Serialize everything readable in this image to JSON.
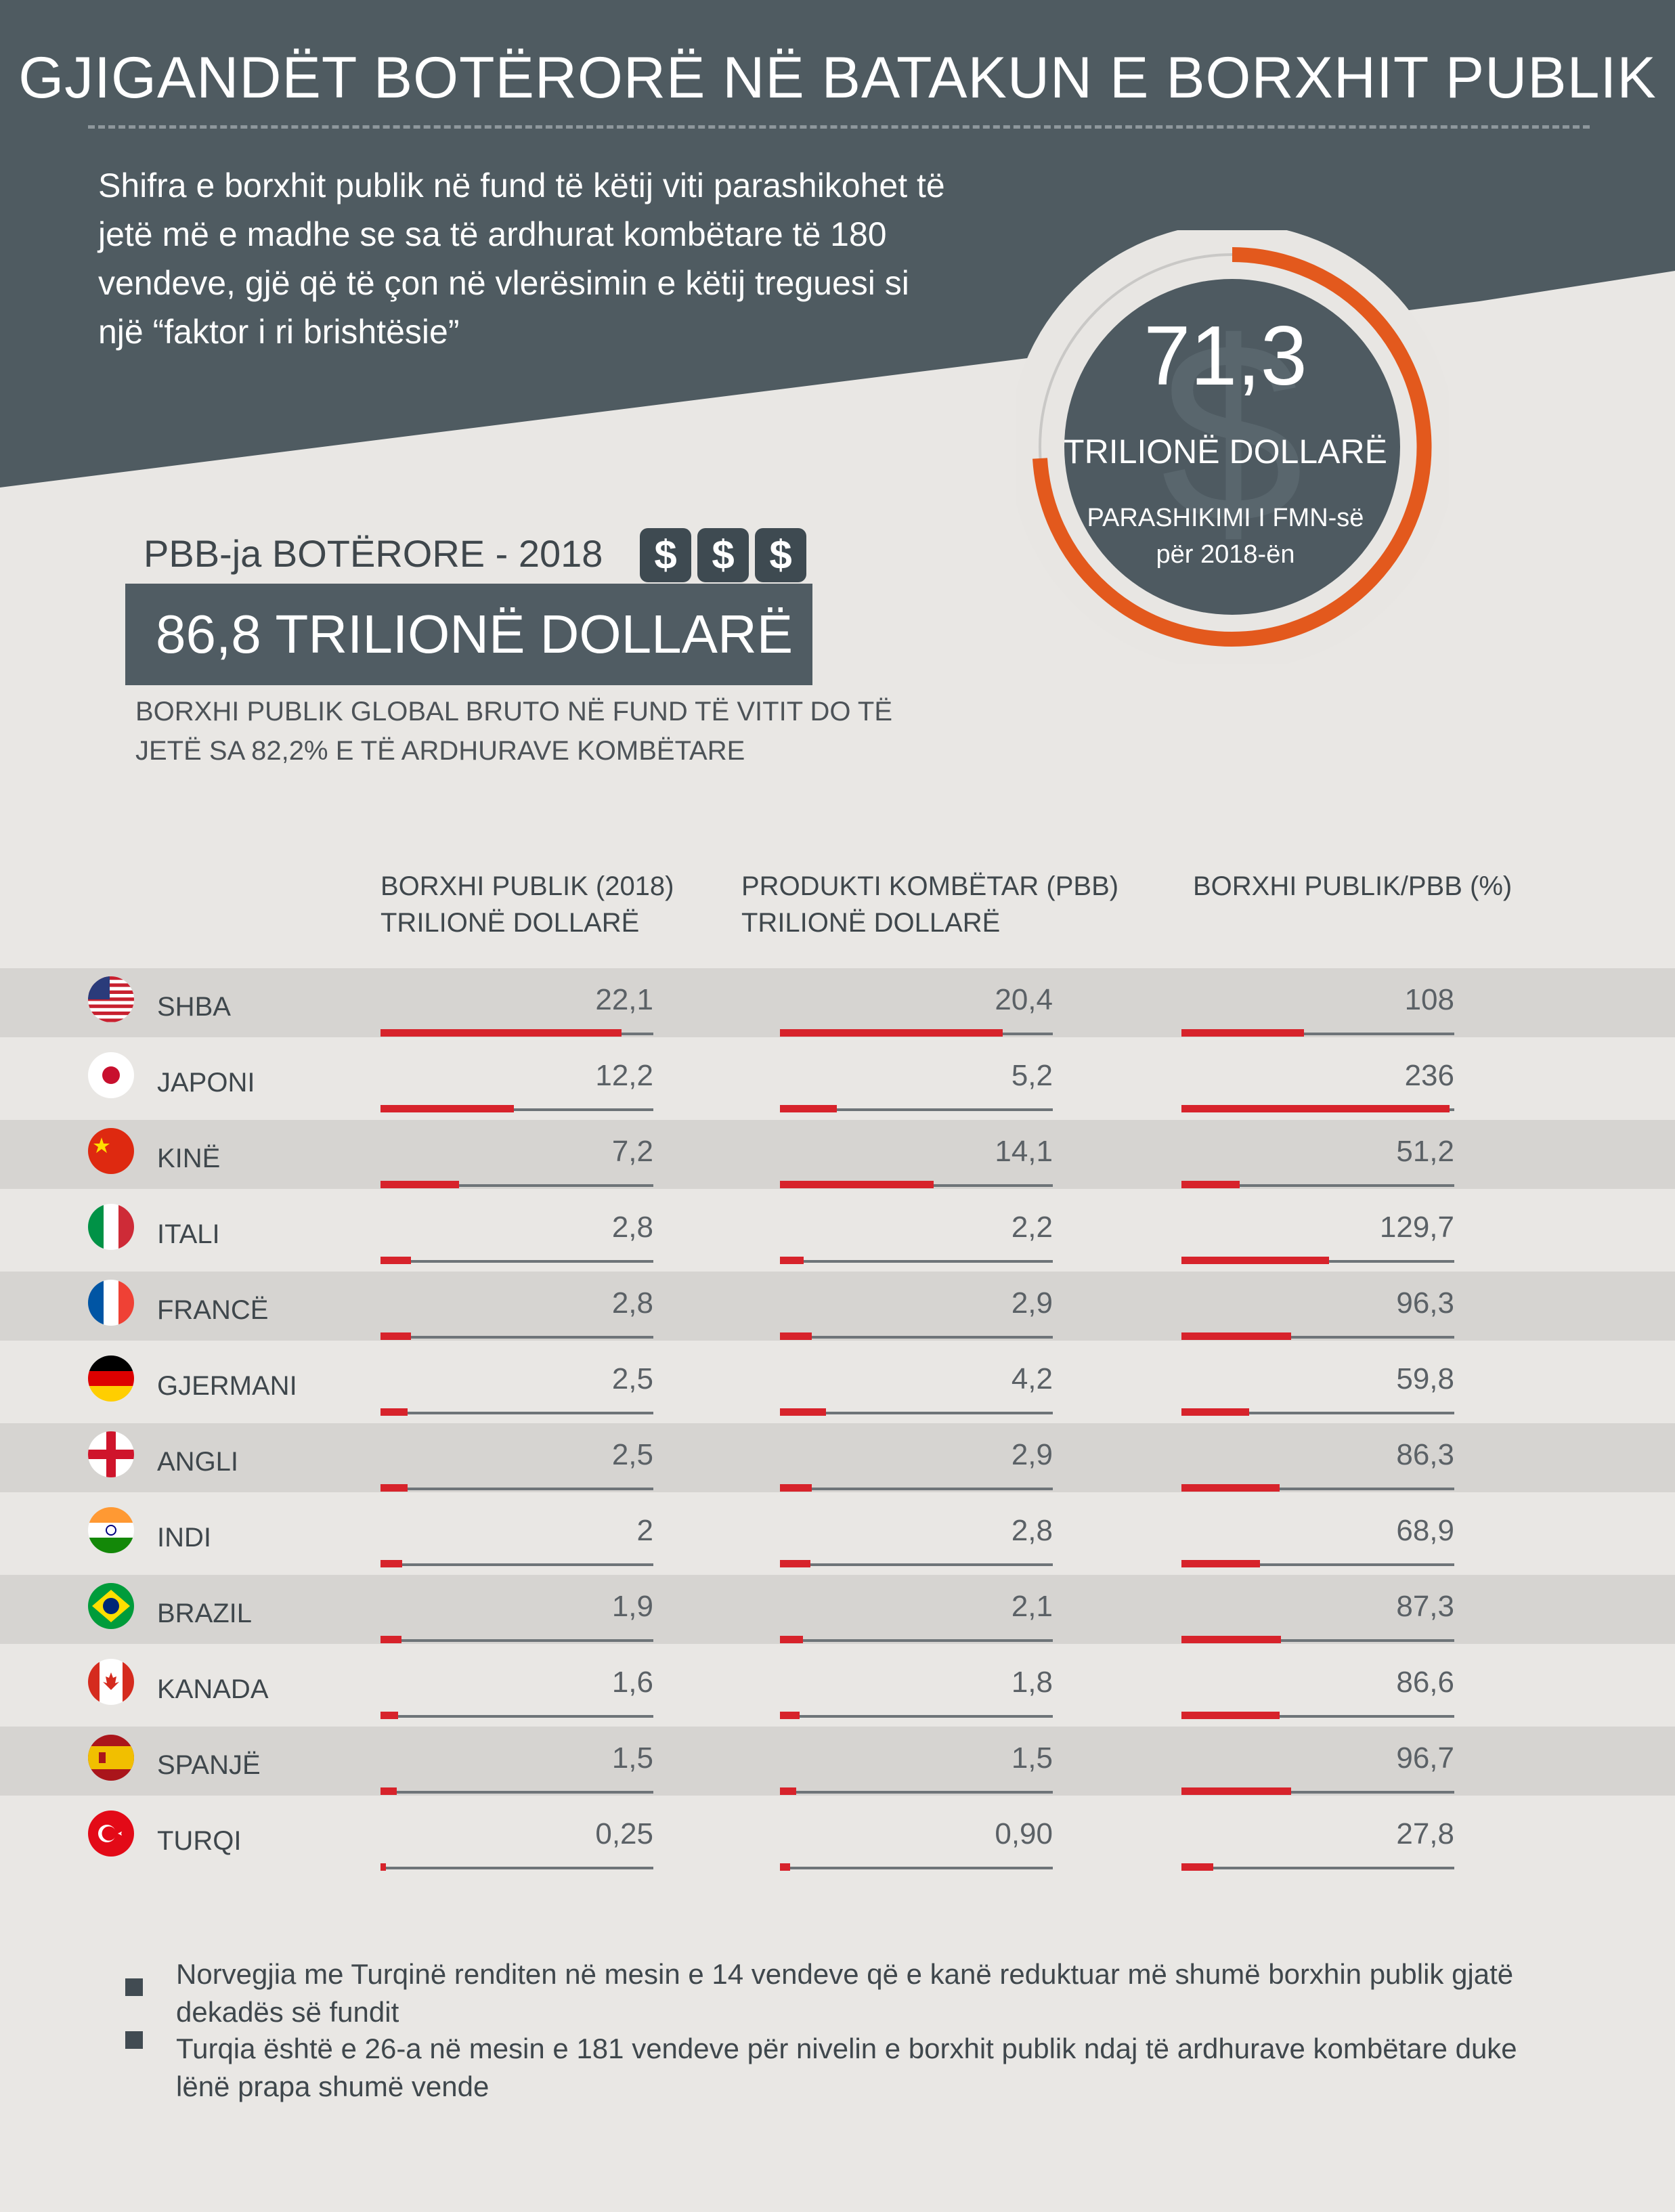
{
  "header": {
    "title": "GJIGANDËT BOTËRORË NË BATAKUN E BORXHIT PUBLIK",
    "intro": "Shifra e borxhit publik në fund të këtij viti parashikohet të jetë më e madhe se sa të ardhurat kombëtare të 180 vendeve, gjë që të çon në vlerësimin e këtij treguesi si një “faktor i ri brishtësie”"
  },
  "highlight": {
    "value": "71,3",
    "unit": "TRILIONË DOLLARË",
    "note": "PARASHIKIMI I FMN-së për 2018-ën",
    "dollar_sign": "$"
  },
  "gdp": {
    "label": "PBB-ja BOTËRORE - 2018",
    "value": "86,8 TRILIONË DOLLARË",
    "note": "BORXHI PUBLIK GLOBAL BRUTO NË FUND TË VITIT DO TË JETË SA 82,2% E TË ARDHURAVE KOMBËTARE"
  },
  "colors": {
    "header": "#4f5b61",
    "bar": "#d7232b",
    "gauge_arc": "#e3591d",
    "circle": "#4e5a61"
  },
  "chart_data": {
    "type": "table",
    "columns": [
      "BORXHI PUBLIK (2018)\nTRILIONË DOLLARË",
      "PRODUKTI KOMBËTAR (PBB)\nTRILIONË DOLLARË",
      "BORXHI PUBLIK/PBB (%)"
    ],
    "rows": [
      {
        "country": "SHBA",
        "flag": "usa-flag-icon",
        "debt": 22.1,
        "gdp": 20.4,
        "ratio": 108,
        "labels": [
          "22,1",
          "20,4",
          "108"
        ]
      },
      {
        "country": "JAPONI",
        "flag": "japan-flag-icon",
        "debt": 12.2,
        "gdp": 5.2,
        "ratio": 236,
        "labels": [
          "12,2",
          "5,2",
          "236"
        ]
      },
      {
        "country": "KINË",
        "flag": "china-flag-icon",
        "debt": 7.2,
        "gdp": 14.1,
        "ratio": 51.2,
        "labels": [
          "7,2",
          "14,1",
          "51,2"
        ]
      },
      {
        "country": "ITALI",
        "flag": "italy-flag-icon",
        "debt": 2.8,
        "gdp": 2.2,
        "ratio": 129.7,
        "labels": [
          "2,8",
          "2,2",
          "129,7"
        ]
      },
      {
        "country": "FRANCË",
        "flag": "france-flag-icon",
        "debt": 2.8,
        "gdp": 2.9,
        "ratio": 96.3,
        "labels": [
          "2,8",
          "2,9",
          "96,3"
        ]
      },
      {
        "country": "GJERMANI",
        "flag": "germany-flag-icon",
        "debt": 2.5,
        "gdp": 4.2,
        "ratio": 59.8,
        "labels": [
          "2,5",
          "4,2",
          "59,8"
        ]
      },
      {
        "country": "ANGLI",
        "flag": "england-flag-icon",
        "debt": 2.5,
        "gdp": 2.9,
        "ratio": 86.3,
        "labels": [
          "2,5",
          "2,9",
          "86,3"
        ]
      },
      {
        "country": "INDI",
        "flag": "india-flag-icon",
        "debt": 2,
        "gdp": 2.8,
        "ratio": 68.9,
        "labels": [
          "2",
          "2,8",
          "68,9"
        ]
      },
      {
        "country": "BRAZIL",
        "flag": "brazil-flag-icon",
        "debt": 1.9,
        "gdp": 2.1,
        "ratio": 87.3,
        "labels": [
          "1,9",
          "2,1",
          "87,3"
        ]
      },
      {
        "country": "KANADA",
        "flag": "canada-flag-icon",
        "debt": 1.6,
        "gdp": 1.8,
        "ratio": 86.6,
        "labels": [
          "1,6",
          "1,8",
          "86,6"
        ]
      },
      {
        "country": "SPANJË",
        "flag": "spain-flag-icon",
        "debt": 1.5,
        "gdp": 1.5,
        "ratio": 96.7,
        "labels": [
          "1,5",
          "1,5",
          "96,7"
        ]
      },
      {
        "country": "TURQI",
        "flag": "turkey-flag-icon",
        "debt": 0.25,
        "gdp": 0.9,
        "ratio": 27.8,
        "labels": [
          "0,25",
          "0,90",
          "27,8"
        ]
      }
    ]
  },
  "notes": [
    "Norvegjia me Turqinë renditen në mesin e 14 vendeve që e kanë reduktuar më shumë borxhin publik gjatë dekadës së fundit",
    "Turqia është e 26-a në mesin e 181 vendeve për nivelin e borxhit publik ndaj të ardhurave kombëtare duke lënë prapa shumë vende"
  ]
}
